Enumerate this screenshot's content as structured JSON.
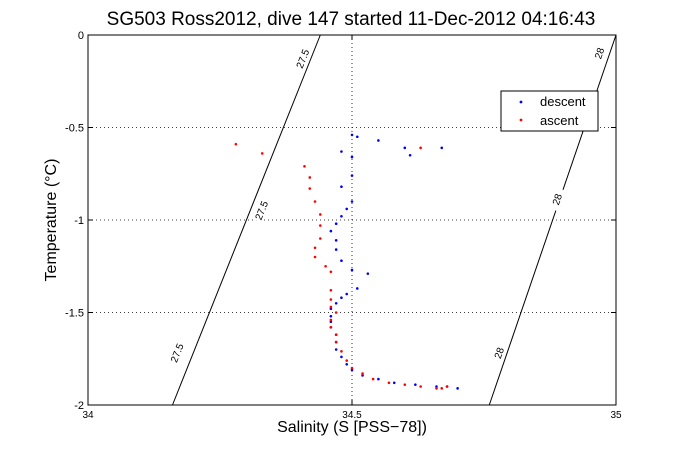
{
  "chart_data": {
    "type": "scatter",
    "title": "SG503 Ross2012, dive 147 started 11-Dec-2012 04:16:43",
    "xlabel": "Salinity (S [PSS−78])",
    "ylabel": "Temperature (°C)",
    "xlim": [
      34,
      35
    ],
    "ylim": [
      -2,
      0
    ],
    "xticks": [
      34,
      34.5,
      35
    ],
    "xtick_labels": [
      "34",
      "34.5",
      "35"
    ],
    "yticks": [
      0,
      -0.5,
      -1,
      -1.5,
      -2
    ],
    "ytick_labels": [
      "0",
      "-0.5",
      "-1",
      "-1.5",
      "-2"
    ],
    "grid": true,
    "legend_position": "top-right",
    "density_contours": [
      {
        "label": "27.5",
        "points": [
          [
            34.44,
            0
          ],
          [
            34.16,
            -2
          ]
        ],
        "label_positions": [
          [
            34.408,
            -0.13
          ],
          [
            34.33,
            -0.95
          ],
          [
            34.17,
            -1.72
          ]
        ]
      },
      {
        "label": "28",
        "points": [
          [
            35.0,
            0
          ],
          [
            34.76,
            -2
          ]
        ],
        "label_positions": [
          [
            34.97,
            -0.1
          ],
          [
            34.89,
            -0.89
          ],
          [
            34.78,
            -1.72
          ]
        ]
      }
    ],
    "series": [
      {
        "name": "descent",
        "color": "#0000ff",
        "points": [
          [
            34.5,
            -0.54
          ],
          [
            34.51,
            -0.55
          ],
          [
            34.55,
            -0.57
          ],
          [
            34.6,
            -0.61
          ],
          [
            34.67,
            -0.61
          ],
          [
            34.61,
            -0.65
          ],
          [
            34.48,
            -0.63
          ],
          [
            34.5,
            -0.66
          ],
          [
            34.5,
            -0.76
          ],
          [
            34.48,
            -0.82
          ],
          [
            34.5,
            -0.9
          ],
          [
            34.49,
            -0.94
          ],
          [
            34.48,
            -0.98
          ],
          [
            34.47,
            -1.02
          ],
          [
            34.46,
            -1.06
          ],
          [
            34.47,
            -1.11
          ],
          [
            34.47,
            -1.16
          ],
          [
            34.48,
            -1.22
          ],
          [
            34.5,
            -1.27
          ],
          [
            34.53,
            -1.29
          ],
          [
            34.51,
            -1.37
          ],
          [
            34.49,
            -1.4
          ],
          [
            34.48,
            -1.42
          ],
          [
            34.47,
            -1.45
          ],
          [
            34.46,
            -1.48
          ],
          [
            34.46,
            -1.52
          ],
          [
            34.46,
            -1.55
          ],
          [
            34.46,
            -1.58
          ],
          [
            34.47,
            -1.62
          ],
          [
            34.47,
            -1.66
          ],
          [
            34.47,
            -1.7
          ],
          [
            34.48,
            -1.74
          ],
          [
            34.49,
            -1.78
          ],
          [
            34.5,
            -1.81
          ],
          [
            34.52,
            -1.84
          ],
          [
            34.55,
            -1.86
          ],
          [
            34.58,
            -1.88
          ],
          [
            34.62,
            -1.89
          ],
          [
            34.66,
            -1.9
          ],
          [
            34.68,
            -1.9
          ],
          [
            34.7,
            -1.91
          ]
        ]
      },
      {
        "name": "ascent",
        "color": "#ff0000",
        "points": [
          [
            34.28,
            -0.59
          ],
          [
            34.33,
            -0.64
          ],
          [
            34.63,
            -0.61
          ],
          [
            34.41,
            -0.71
          ],
          [
            34.42,
            -0.77
          ],
          [
            34.42,
            -0.83
          ],
          [
            34.43,
            -0.9
          ],
          [
            34.44,
            -0.97
          ],
          [
            34.44,
            -1.03
          ],
          [
            34.44,
            -1.1
          ],
          [
            34.43,
            -1.15
          ],
          [
            34.43,
            -1.2
          ],
          [
            34.45,
            -1.25
          ],
          [
            34.46,
            -1.28
          ],
          [
            34.46,
            -1.38
          ],
          [
            34.46,
            -1.43
          ],
          [
            34.46,
            -1.47
          ],
          [
            34.47,
            -1.5
          ],
          [
            34.46,
            -1.54
          ],
          [
            34.46,
            -1.58
          ],
          [
            34.47,
            -1.62
          ],
          [
            34.47,
            -1.66
          ],
          [
            34.48,
            -1.71
          ],
          [
            34.49,
            -1.76
          ],
          [
            34.5,
            -1.8
          ],
          [
            34.52,
            -1.83
          ],
          [
            34.54,
            -1.86
          ],
          [
            34.57,
            -1.88
          ],
          [
            34.6,
            -1.89
          ],
          [
            34.63,
            -1.9
          ],
          [
            34.66,
            -1.91
          ],
          [
            34.68,
            -1.9
          ],
          [
            34.67,
            -1.91
          ]
        ]
      }
    ]
  }
}
